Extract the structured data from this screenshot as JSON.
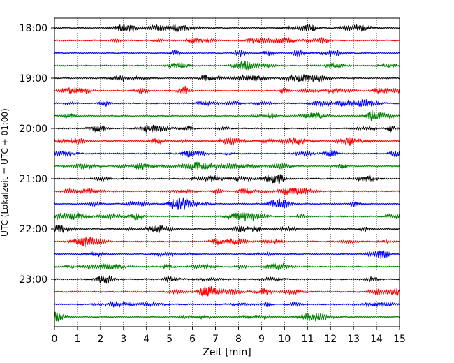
{
  "chart_data": {
    "type": "line",
    "subtype": "helicorder",
    "title": "",
    "xlabel": "Zeit  [min]",
    "ylabel": "UTC (Lokalzeit = UTC + 01:00)",
    "xlim": [
      0,
      15
    ],
    "x_ticks": [
      0,
      1,
      2,
      3,
      4,
      5,
      6,
      7,
      8,
      9,
      10,
      11,
      12,
      13,
      14,
      15
    ],
    "x_tick_labels": [
      "0",
      "1",
      "2",
      "3",
      "4",
      "5",
      "6",
      "7",
      "8",
      "9",
      "10",
      "11",
      "12",
      "13",
      "14",
      "15"
    ],
    "y_tick_labels": [
      "18:00",
      "19:00",
      "20:00",
      "21:00",
      "22:00",
      "23:00"
    ],
    "trace_interval_min": 15,
    "trace_start_times": [
      "18:00",
      "18:15",
      "18:30",
      "18:45",
      "19:00",
      "19:15",
      "19:30",
      "19:45",
      "20:00",
      "20:15",
      "20:30",
      "20:45",
      "21:00",
      "21:15",
      "21:30",
      "21:45",
      "22:00",
      "22:15",
      "22:30",
      "22:45",
      "23:00",
      "23:15",
      "23:30",
      "23:45"
    ],
    "trace_color_cycle": [
      "#000000",
      "#ff0000",
      "#0000ff",
      "#008000"
    ],
    "grid": "vertical dotted",
    "legend": "none"
  }
}
